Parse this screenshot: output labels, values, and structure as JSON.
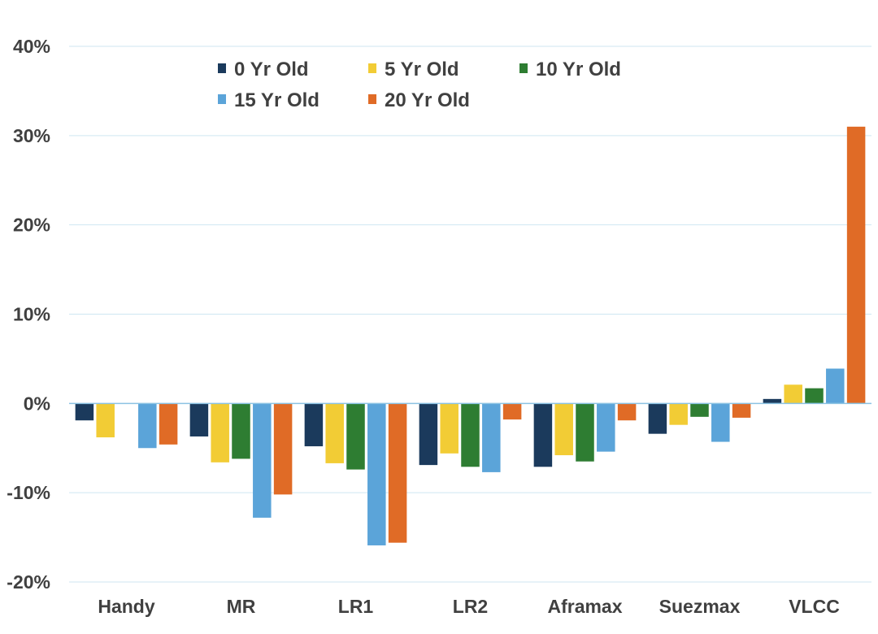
{
  "chart_data": {
    "type": "bar",
    "categories": [
      "Handy",
      "MR",
      "LR1",
      "LR2",
      "Aframax",
      "Suezmax",
      "VLCC"
    ],
    "series": [
      {
        "name": "0 Yr Old",
        "color": "#1b3a5c",
        "values": [
          -1.9,
          -3.7,
          -4.8,
          -6.9,
          -7.1,
          -3.4,
          0.5
        ]
      },
      {
        "name": "5 Yr Old",
        "color": "#f2cc35",
        "values": [
          -3.8,
          -6.6,
          -6.7,
          -5.6,
          -5.8,
          -2.4,
          2.1
        ]
      },
      {
        "name": "10 Yr Old",
        "color": "#2e7d32",
        "values": [
          0,
          -6.2,
          -7.4,
          -7.1,
          -6.5,
          -1.5,
          1.7
        ]
      },
      {
        "name": "15 Yr Old",
        "color": "#5ba4d9",
        "values": [
          -5.0,
          -12.8,
          -15.9,
          -7.7,
          -5.4,
          -4.3,
          3.9
        ]
      },
      {
        "name": "20 Yr Old",
        "color": "#e06b26",
        "values": [
          -4.6,
          -10.2,
          -15.6,
          -1.8,
          -1.9,
          -1.6,
          31.0
        ]
      }
    ],
    "yticks": [
      "40%",
      "30%",
      "20%",
      "10%",
      "0%",
      "-10%",
      "-20%"
    ],
    "ylim": [
      -20,
      40
    ],
    "title": "",
    "xlabel": "",
    "ylabel": "",
    "grid": true,
    "gridColor": "#cfe6f2",
    "axisColor": "#8bc3e3",
    "legend": "top-left inside plot"
  }
}
